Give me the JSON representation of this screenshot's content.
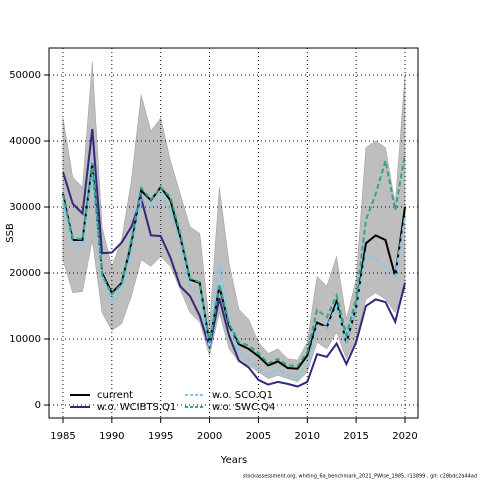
{
  "chart_data": {
    "type": "line",
    "xlabel": "Years",
    "ylabel": "SSB",
    "footer": "stockassessment.org, whiting_6a_benchmark_2021_PWise_1985, r13899 , git: c28bdc2a44ad",
    "x": [
      1985,
      1986,
      1987,
      1988,
      1989,
      1990,
      1991,
      1992,
      1993,
      1994,
      1995,
      1996,
      1997,
      1998,
      1999,
      2000,
      2001,
      2002,
      2003,
      2004,
      2005,
      2006,
      2007,
      2008,
      2009,
      2010,
      2011,
      2012,
      2013,
      2014,
      2015,
      2016,
      2017,
      2018,
      2019,
      2020
    ],
    "band": {
      "color": "#bebebe",
      "upper": [
        43500,
        34500,
        33000,
        52000,
        27000,
        21000,
        25000,
        34000,
        47000,
        41500,
        43500,
        37000,
        32000,
        27000,
        26000,
        12000,
        33000,
        21500,
        14500,
        13000,
        9500,
        7800,
        8500,
        7000,
        6800,
        9500,
        19500,
        18000,
        22500,
        13000,
        19000,
        39000,
        40000,
        39000,
        30500,
        50000
      ],
      "lower": [
        22000,
        17000,
        17200,
        25000,
        14000,
        11300,
        12300,
        16500,
        22000,
        21000,
        22500,
        21000,
        17500,
        14000,
        12500,
        7500,
        14000,
        8500,
        6500,
        6000,
        5000,
        4000,
        4500,
        4000,
        3500,
        5000,
        9500,
        8500,
        11000,
        7000,
        10000,
        16000,
        17000,
        16000,
        14000,
        17500
      ]
    },
    "series": [
      {
        "name": "current",
        "color": "#000000",
        "dash": false,
        "values": [
          32000,
          25000,
          25000,
          36500,
          20000,
          17000,
          18500,
          24500,
          32500,
          31000,
          33000,
          31000,
          25500,
          19000,
          18500,
          9300,
          18000,
          12000,
          9200,
          8500,
          7400,
          6000,
          6600,
          5600,
          5500,
          7500,
          12500,
          11800,
          15700,
          9400,
          14800,
          24500,
          25700,
          25000,
          19500,
          30000
        ]
      },
      {
        "name": "w.o. WCIBTS.Q1",
        "color": "#33287e",
        "dash": false,
        "values": [
          35300,
          30500,
          29000,
          41800,
          23000,
          23100,
          24600,
          27000,
          31300,
          25700,
          25600,
          22300,
          18000,
          16500,
          13500,
          8700,
          16200,
          10500,
          6700,
          5700,
          3800,
          3100,
          3500,
          3200,
          2800,
          3500,
          7700,
          7300,
          9300,
          6200,
          9500,
          15000,
          16000,
          15600,
          12600,
          18500
        ]
      },
      {
        "name": "w.o. SCO.Q1",
        "color": "#7fc8f0",
        "dash": true,
        "values": [
          31000,
          24300,
          24000,
          35000,
          19700,
          15800,
          17500,
          23200,
          31300,
          30000,
          31800,
          29500,
          24500,
          17700,
          16800,
          8700,
          21500,
          12600,
          8000,
          7000,
          5500,
          4700,
          5300,
          4500,
          4300,
          6200,
          12000,
          11800,
          15000,
          9500,
          14800,
          23000,
          22000,
          21000,
          19500,
          28500
        ]
      },
      {
        "name": "w.o. SWC.Q4",
        "color": "#2fa58e",
        "dash": true,
        "values": [
          31800,
          25300,
          25100,
          36700,
          19700,
          16800,
          18300,
          25000,
          32900,
          31100,
          33000,
          31500,
          26000,
          19200,
          18600,
          9400,
          18300,
          12300,
          9500,
          9000,
          7900,
          6300,
          7000,
          6000,
          5900,
          8000,
          14400,
          13300,
          16600,
          10600,
          16000,
          28000,
          32000,
          37000,
          29500,
          38000
        ]
      }
    ],
    "xlim": [
      1983.57,
      2021.33
    ],
    "xticks": [
      1985,
      1990,
      1995,
      2000,
      2005,
      2010,
      2015,
      2020
    ],
    "ylim": [
      -1970,
      54090
    ],
    "yticks": [
      0,
      10000,
      20000,
      30000,
      40000,
      50000
    ],
    "grid": true,
    "legend": "bottom-left"
  }
}
